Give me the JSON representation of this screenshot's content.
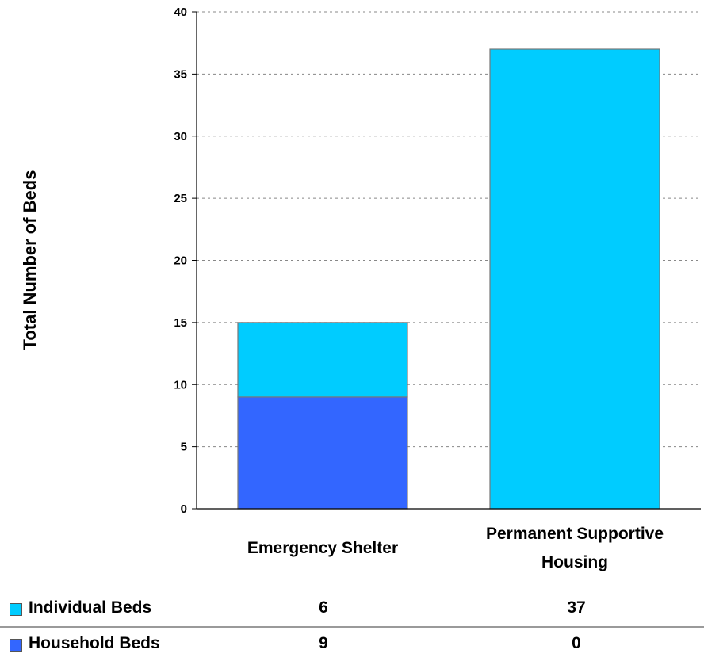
{
  "chart_data": {
    "type": "bar",
    "stacked": true,
    "ylabel": "Total Number of Beds",
    "xlabel": "",
    "ylim": [
      0,
      40
    ],
    "yticks": [
      0,
      5,
      10,
      15,
      20,
      25,
      30,
      35,
      40
    ],
    "grid": true,
    "categories": [
      [
        "Emergency Shelter"
      ],
      [
        "Permanent Supportive",
        "Housing"
      ]
    ],
    "series": [
      {
        "name": "Household Beds",
        "values": [
          9,
          0
        ],
        "color": "#3366ff"
      },
      {
        "name": "Individual Beds",
        "values": [
          6,
          37
        ],
        "color": "#00ccff"
      }
    ]
  },
  "table": {
    "rows": [
      {
        "label": "Individual Beds",
        "color": "#00ccff",
        "values": [
          "6",
          "37"
        ]
      },
      {
        "label": "Household Beds",
        "color": "#3366ff",
        "values": [
          "9",
          "0"
        ]
      }
    ]
  }
}
